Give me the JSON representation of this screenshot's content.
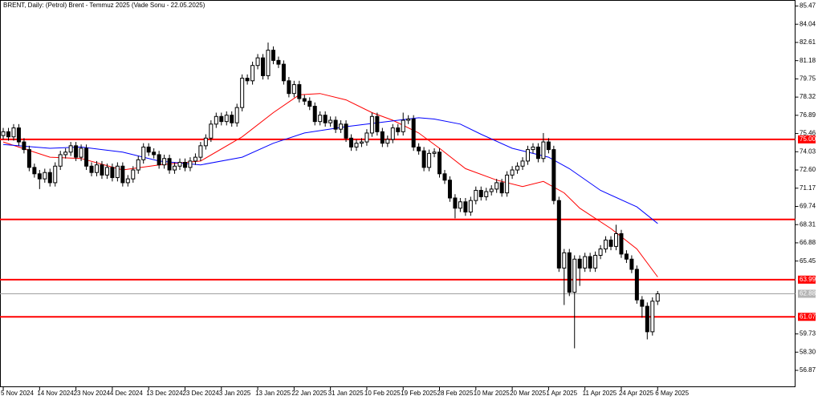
{
  "chart_data": {
    "type": "candlestick",
    "title": "BRENT, Daily:  (Petrol) Brent - Temmuz 2025 (Vade Sonu - 22.05.2025)",
    "categories": [
      "5 Nov 2024",
      null,
      null,
      null,
      null,
      null,
      null,
      "14 Nov 2024",
      null,
      null,
      null,
      null,
      null,
      null,
      "23 Nov 2024",
      null,
      null,
      null,
      null,
      null,
      null,
      "4 Dec 2024",
      null,
      null,
      null,
      null,
      null,
      null,
      "13 Dec 2024",
      null,
      null,
      null,
      null,
      null,
      null,
      "23 Dec 2024",
      null,
      null,
      null,
      null,
      null,
      null,
      "3 Jan 2025",
      null,
      null,
      null,
      null,
      null,
      null,
      "13 Jan 2025",
      null,
      null,
      null,
      null,
      null,
      null,
      "22 Jan 2025",
      null,
      null,
      null,
      null,
      null,
      null,
      "31 Jan 2025",
      null,
      null,
      null,
      null,
      null,
      null,
      "10 Feb 2025",
      null,
      null,
      null,
      null,
      null,
      null,
      "19 Feb 2025",
      null,
      null,
      null,
      null,
      null,
      null,
      "28 Feb 2025",
      null,
      null,
      null,
      null,
      null,
      null,
      "10 Mar 2025",
      null,
      null,
      null,
      null,
      null,
      null,
      "20 Mar 2025",
      null,
      null,
      null,
      null,
      null,
      null,
      "1 Apr 2025",
      null,
      null,
      null,
      null,
      null,
      null,
      "11 Apr 2025",
      null,
      null,
      null,
      null,
      null,
      null,
      "24 Apr 2025",
      null,
      null,
      null,
      null,
      null,
      null,
      "6 May 2025"
    ],
    "open": [
      75.3,
      75.6,
      75.2,
      75.9,
      74.8,
      74.2,
      72.8,
      72.3,
      71.9,
      72.4,
      71.6,
      72.9,
      73.8,
      74.0,
      74.5,
      73.6,
      74.3,
      72.9,
      72.4,
      73.0,
      72.2,
      72.8,
      72.0,
      72.9,
      71.6,
      71.9,
      72.6,
      73.4,
      74.4,
      74.0,
      73.8,
      73.0,
      73.5,
      72.6,
      72.9,
      73.2,
      72.8,
      73.3,
      73.6,
      74.5,
      75.1,
      76.2,
      76.8,
      76.4,
      76.9,
      76.3,
      77.5,
      79.8,
      79.6,
      80.8,
      81.4,
      80.0,
      82.0,
      81.2,
      80.9,
      79.6,
      78.6,
      79.3,
      78.2,
      78.0,
      77.6,
      76.4,
      76.9,
      76.3,
      76.5,
      75.8,
      76.2,
      75.1,
      74.4,
      74.7,
      74.8,
      75.5,
      76.8,
      75.6,
      74.7,
      75.0,
      75.9,
      75.6,
      76.5,
      76.6,
      74.4,
      74.1,
      72.8,
      73.9,
      74.0,
      72.3,
      71.8,
      70.4,
      69.6,
      70.1,
      69.3,
      70.2,
      71.0,
      70.5,
      70.9,
      71.1,
      71.6,
      70.8,
      72.2,
      72.6,
      72.9,
      73.3,
      74.2,
      74.4,
      73.5,
      74.8,
      74.2,
      70.2,
      64.9,
      66.1,
      63.0,
      65.6,
      64.9,
      65.8,
      64.9,
      65.9,
      66.4,
      67.1,
      66.6,
      67.6,
      66.0,
      65.6,
      64.8,
      62.4,
      61.9,
      59.9,
      62.3
    ],
    "high": [
      75.9,
      75.9,
      76.2,
      76.2,
      75.1,
      74.5,
      73.1,
      72.6,
      72.7,
      72.7,
      73.2,
      74.1,
      74.3,
      74.8,
      74.8,
      74.6,
      74.6,
      73.2,
      73.3,
      73.3,
      73.1,
      73.1,
      73.2,
      73.2,
      72.2,
      72.9,
      73.7,
      74.7,
      74.7,
      74.3,
      74.1,
      73.8,
      73.8,
      73.2,
      73.5,
      73.5,
      73.6,
      73.9,
      74.8,
      75.4,
      76.5,
      77.1,
      77.1,
      77.2,
      77.2,
      77.8,
      80.1,
      80.1,
      81.1,
      81.7,
      81.7,
      82.6,
      82.3,
      81.5,
      81.2,
      79.9,
      79.6,
      79.6,
      78.5,
      78.3,
      77.9,
      77.2,
      77.2,
      76.8,
      76.8,
      76.5,
      76.5,
      75.4,
      75.0,
      75.1,
      75.8,
      77.1,
      77.1,
      75.9,
      75.3,
      76.2,
      76.2,
      77.1,
      76.9,
      76.9,
      74.7,
      74.4,
      74.2,
      74.3,
      74.3,
      72.6,
      72.1,
      70.7,
      70.4,
      70.4,
      70.5,
      71.3,
      71.3,
      71.2,
      71.4,
      71.9,
      71.9,
      72.5,
      72.9,
      73.2,
      73.6,
      74.5,
      74.7,
      74.7,
      75.5,
      75.1,
      74.5,
      70.5,
      66.4,
      66.4,
      65.9,
      65.9,
      66.1,
      66.1,
      66.2,
      66.7,
      67.4,
      67.4,
      68.3,
      67.9,
      66.3,
      65.9,
      65.1,
      62.7,
      62.2,
      62.6,
      63.1
    ],
    "low": [
      75.0,
      74.9,
      74.9,
      74.5,
      73.9,
      72.5,
      72.0,
      71.1,
      71.6,
      71.3,
      71.3,
      72.6,
      73.5,
      73.7,
      73.3,
      73.3,
      72.6,
      72.1,
      72.1,
      71.9,
      71.9,
      71.7,
      71.7,
      71.3,
      71.3,
      71.6,
      72.3,
      73.1,
      73.7,
      73.5,
      72.7,
      72.7,
      72.3,
      72.3,
      72.6,
      72.5,
      72.5,
      73.0,
      73.3,
      74.2,
      74.8,
      75.9,
      76.1,
      76.1,
      76.0,
      76.0,
      77.2,
      79.3,
      79.3,
      80.5,
      79.7,
      79.7,
      80.9,
      80.6,
      79.3,
      78.3,
      78.3,
      77.9,
      77.7,
      77.3,
      76.1,
      76.1,
      76.0,
      76.0,
      75.5,
      75.5,
      74.8,
      74.1,
      74.1,
      74.4,
      74.5,
      75.2,
      75.3,
      74.4,
      74.4,
      74.7,
      75.3,
      75.3,
      76.2,
      74.1,
      73.8,
      72.5,
      72.5,
      73.6,
      72.0,
      71.5,
      70.1,
      68.8,
      69.3,
      69.0,
      69.0,
      69.9,
      70.2,
      70.2,
      70.6,
      70.8,
      70.5,
      70.5,
      71.9,
      72.3,
      72.6,
      73.0,
      73.9,
      73.2,
      73.2,
      73.9,
      69.9,
      64.6,
      62.0,
      62.7,
      58.6,
      63.5,
      64.6,
      64.6,
      64.6,
      65.6,
      66.1,
      66.3,
      66.3,
      65.7,
      65.3,
      64.5,
      62.1,
      61.0,
      59.3,
      59.6,
      62.0
    ],
    "close": [
      75.6,
      75.2,
      75.9,
      74.8,
      74.2,
      72.8,
      72.3,
      71.9,
      72.4,
      71.6,
      72.9,
      73.8,
      74.0,
      74.5,
      73.6,
      74.3,
      72.9,
      72.4,
      73.0,
      72.2,
      72.8,
      72.0,
      72.9,
      71.6,
      71.9,
      72.6,
      73.4,
      74.4,
      74.0,
      73.8,
      73.0,
      73.5,
      72.6,
      72.9,
      73.2,
      72.8,
      73.3,
      73.6,
      74.5,
      75.1,
      76.2,
      76.8,
      76.4,
      76.9,
      76.3,
      77.5,
      79.8,
      79.6,
      80.8,
      81.4,
      80.0,
      82.0,
      81.2,
      80.9,
      79.6,
      78.6,
      79.3,
      78.2,
      78.0,
      77.6,
      76.4,
      76.9,
      76.3,
      76.5,
      75.8,
      76.2,
      75.1,
      74.4,
      74.7,
      74.8,
      75.5,
      76.8,
      75.6,
      74.7,
      75.0,
      75.9,
      75.6,
      76.5,
      76.6,
      74.4,
      74.1,
      72.8,
      73.9,
      74.0,
      72.3,
      71.8,
      70.4,
      69.6,
      70.1,
      69.3,
      70.2,
      71.0,
      70.5,
      70.9,
      71.1,
      71.6,
      70.8,
      72.2,
      72.6,
      72.9,
      73.3,
      74.2,
      74.4,
      73.5,
      74.8,
      74.2,
      70.2,
      64.9,
      66.1,
      63.0,
      65.6,
      64.9,
      65.8,
      64.9,
      65.9,
      66.4,
      67.1,
      66.6,
      67.6,
      66.0,
      65.6,
      64.8,
      62.4,
      61.9,
      59.9,
      62.3,
      62.88
    ],
    "up_color": "#ffffff",
    "down_color": "#000000",
    "overlays": [
      {
        "color": "#ff0000",
        "x": [
          0,
          9,
          15,
          23,
          30,
          38,
          46,
          52,
          57,
          61,
          66,
          71,
          75,
          80,
          84,
          89,
          95,
          100,
          104,
          108,
          111,
          117,
          122,
          126
        ],
        "values": [
          74.8,
          73.6,
          73.5,
          72.6,
          73.0,
          73.3,
          75.2,
          77.1,
          78.5,
          78.6,
          78.1,
          77.1,
          76.5,
          75.5,
          74.3,
          72.7,
          71.8,
          71.3,
          71.7,
          70.8,
          69.6,
          68.0,
          66.4,
          64.2
        ]
      },
      {
        "color": "#0000ff",
        "x": [
          0,
          9,
          15,
          23,
          30,
          38,
          46,
          52,
          58,
          66,
          74,
          80,
          83,
          88,
          92,
          98,
          105,
          109,
          115,
          122,
          126
        ],
        "values": [
          74.6,
          74.3,
          74.4,
          74.0,
          73.3,
          73.0,
          73.6,
          74.7,
          75.5,
          76.0,
          76.4,
          76.7,
          76.6,
          76.2,
          75.4,
          74.3,
          73.6,
          72.7,
          71.0,
          69.7,
          68.4
        ]
      }
    ],
    "hlines": [
      {
        "value": 75.0,
        "label": "75.00",
        "color": "#ff0000"
      },
      {
        "value": 68.72,
        "color": "#ff0000"
      },
      {
        "value": 63.99,
        "label": "63.99",
        "color": "#ff0000"
      },
      {
        "value": 61.07,
        "label": "61.07",
        "color": "#ff0000"
      }
    ],
    "last_price": {
      "value": 62.88,
      "label": "62.88"
    },
    "ylim": [
      55.55,
      85.91
    ],
    "yticks": [
      85.47,
      84.04,
      82.61,
      81.18,
      79.75,
      78.32,
      76.89,
      75.46,
      74.03,
      {
        "value": 72.6,
        "label": "72.60"
      },
      71.17,
      69.74,
      68.31,
      66.88,
      65.45,
      59.73,
      {
        "value": 58.3,
        "label": "58.30"
      },
      56.87
    ]
  }
}
